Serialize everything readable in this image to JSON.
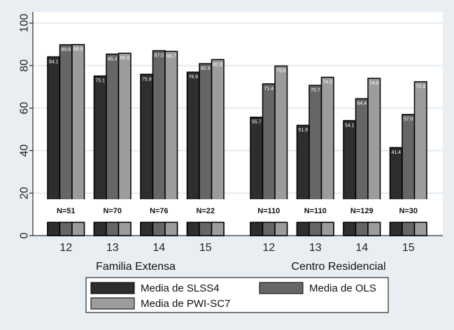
{
  "chart_data": {
    "type": "bar",
    "title": "",
    "xlabel": "",
    "ylabel": "",
    "ylim": [
      0,
      100
    ],
    "yticks": [
      "0",
      "20",
      "40",
      "60",
      "80",
      "100"
    ],
    "grid": true,
    "legend_position": "bottom",
    "groups": [
      {
        "label": "Familia Extensa",
        "categories": [
          "12",
          "13",
          "14",
          "15"
        ],
        "n_labels": [
          "N=51",
          "N=70",
          "N=76",
          "N=22"
        ],
        "series": [
          {
            "name": "Media de SLSS4",
            "values": [
              84.1,
              75.1,
              75.9,
              76.9
            ],
            "labels": [
              "84.1",
              "75.1",
              "75.9",
              "76.9"
            ]
          },
          {
            "name": "Media de OLS",
            "values": [
              89.8,
              85.4,
              87.0,
              80.9
            ],
            "labels": [
              "89.8",
              "85.4",
              "87.0",
              "80.9"
            ]
          },
          {
            "name": "Media de PWI-SC7",
            "values": [
              89.9,
              85.8,
              86.7,
              82.8
            ],
            "labels": [
              "89.9",
              "85.8",
              "86.7",
              "82.8"
            ]
          }
        ]
      },
      {
        "label": "Centro Residencial",
        "categories": [
          "12",
          "13",
          "14",
          "15"
        ],
        "n_labels": [
          "N=110",
          "N=110",
          "N=129",
          "N=30"
        ],
        "series": [
          {
            "name": "Media de SLSS4",
            "values": [
              55.7,
              51.9,
              54.1,
              41.4
            ],
            "labels": [
              "55.7",
              "51.9",
              "54.1",
              "41.4"
            ]
          },
          {
            "name": "Media de OLS",
            "values": [
              71.4,
              70.7,
              64.4,
              57.0
            ],
            "labels": [
              "71.4",
              "70.7",
              "64.4",
              "57.0"
            ]
          },
          {
            "name": "Media de PWI-SC7",
            "values": [
              79.8,
              74.5,
              74.0,
              72.4
            ],
            "labels": [
              "79.8",
              "74.5",
              "74.0",
              "72.4"
            ]
          }
        ]
      }
    ],
    "legend": [
      {
        "name": "Media de SLSS4",
        "color": "#2e2e2e"
      },
      {
        "name": "Media de OLS",
        "color": "#666666"
      },
      {
        "name": "Media de PWI-SC7",
        "color": "#9c9c9c"
      }
    ]
  }
}
